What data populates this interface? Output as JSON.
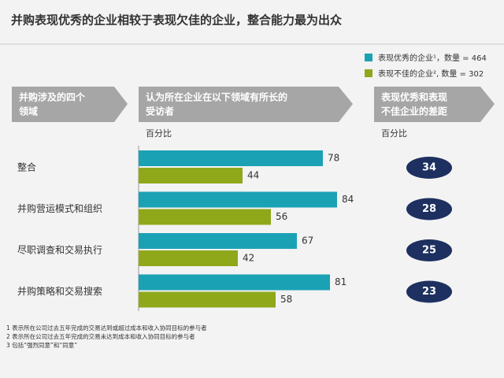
{
  "chart_data": {
    "type": "bar",
    "orientation": "horizontal",
    "title": "并购表现优秀的企业相较于表现欠佳的企业，整合能力最为出众",
    "column_headers": [
      "并购涉及的四个领域",
      "认为所在企业在以下领域有所长的受访者",
      "表现优秀和表现不佳企业的差距"
    ],
    "units": [
      "百分比",
      "百分比"
    ],
    "categories": [
      "整合",
      "并购营运模式和组织",
      "尽职调查和交易执行",
      "并购策略和交易搜索"
    ],
    "series": [
      {
        "name": "表现优秀的企业¹，数量 = 464",
        "color": "#1ba1b4",
        "values": [
          78,
          84,
          67,
          81
        ]
      },
      {
        "name": "表现不佳的企业², 数量 = 302",
        "color": "#8ea81a",
        "values": [
          44,
          56,
          42,
          58
        ]
      }
    ],
    "gap": {
      "color": "#1d3060",
      "values": [
        34,
        28,
        25,
        23
      ]
    },
    "footnotes": [
      "1 表示所在公司过去五年完成的交易达到或超过成本和收入协同目标的参与者",
      "2 表示所在公司过去五年完成的交易未达到成本和收入协同目标的参与者",
      "3 包括“强烈同意”和“同意”"
    ]
  }
}
